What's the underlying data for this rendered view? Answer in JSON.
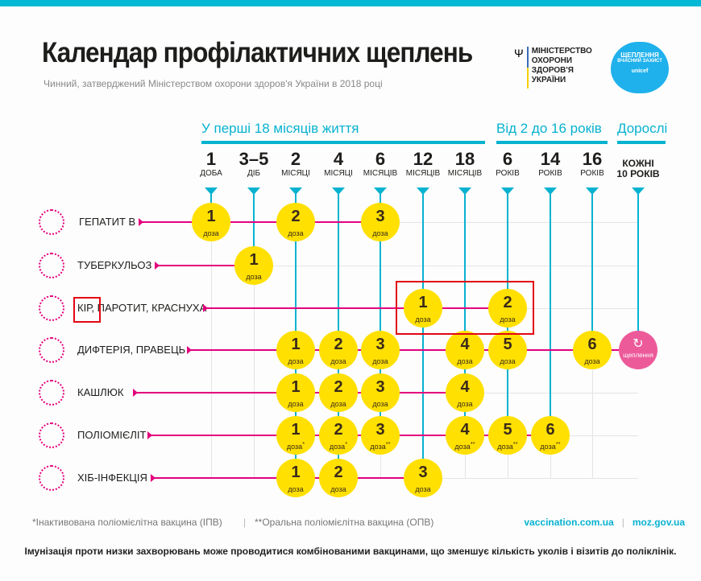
{
  "header": {
    "title": "Календар профілактичних щеплень",
    "subtitle": "Чинний, затверджений Міністерством охорони здоров'я України в 2018 році",
    "ministry": "МІНІСТЕРСТВО ОХОРОНИ ЗДОРОВ'Я УКРАЇНИ",
    "campaign": "ЩЕПЛЕННЯ",
    "campaign_sub": "ВЧАСНИЙ ЗАХИСТ",
    "unicef": "unicef"
  },
  "sections": [
    "У перші 18 місяців життя",
    "Від 2 до 16 років",
    "Дорослі"
  ],
  "columns": [
    {
      "n": "1",
      "u": "ДОБА"
    },
    {
      "n": "3–5",
      "u": "ДІБ"
    },
    {
      "n": "2",
      "u": "МІСЯЦІ"
    },
    {
      "n": "4",
      "u": "МІСЯЦІ"
    },
    {
      "n": "6",
      "u": "МІСЯЦІВ"
    },
    {
      "n": "12",
      "u": "МІСЯЦІВ"
    },
    {
      "n": "18",
      "u": "МІСЯЦІВ"
    },
    {
      "n": "6",
      "u": "РОКІВ"
    },
    {
      "n": "14",
      "u": "РОКІВ"
    },
    {
      "n": "16",
      "u": "РОКІВ"
    },
    {
      "n": "КОЖНІ",
      "u": "10 РОКІВ"
    }
  ],
  "dose_word": "доза",
  "revaccination": "щеплення",
  "rows": [
    {
      "name": "ГЕПАТИТ В",
      "doses": [
        [
          0,
          "1",
          ""
        ],
        [
          2,
          "2",
          ""
        ],
        [
          4,
          "3",
          ""
        ]
      ]
    },
    {
      "name": "ТУБЕРКУЛЬОЗ",
      "doses": [
        [
          1,
          "1",
          ""
        ]
      ]
    },
    {
      "name": "КІР, ПАРОТИТ, КРАСНУХА",
      "doses": [
        [
          5,
          "1",
          ""
        ],
        [
          7,
          "2",
          ""
        ]
      ]
    },
    {
      "name": "ДИФТЕРІЯ, ПРАВЕЦЬ",
      "doses": [
        [
          2,
          "1",
          ""
        ],
        [
          3,
          "2",
          ""
        ],
        [
          4,
          "3",
          ""
        ],
        [
          6,
          "4",
          ""
        ],
        [
          7,
          "5",
          ""
        ],
        [
          9,
          "6",
          ""
        ]
      ],
      "revac": 10
    },
    {
      "name": "КАШЛЮК",
      "doses": [
        [
          2,
          "1",
          ""
        ],
        [
          3,
          "2",
          ""
        ],
        [
          4,
          "3",
          ""
        ],
        [
          6,
          "4",
          ""
        ]
      ]
    },
    {
      "name": "ПОЛІОМІЄЛІТ",
      "doses": [
        [
          2,
          "1",
          "*"
        ],
        [
          3,
          "2",
          "*"
        ],
        [
          4,
          "3",
          "**"
        ],
        [
          6,
          "4",
          "**"
        ],
        [
          7,
          "5",
          "**"
        ],
        [
          8,
          "6",
          "**"
        ]
      ]
    },
    {
      "name": "ХІБ-ІНФЕКЦІЯ",
      "doses": [
        [
          2,
          "1",
          ""
        ],
        [
          3,
          "2",
          ""
        ],
        [
          5,
          "3",
          ""
        ]
      ]
    }
  ],
  "footer": {
    "ipv": "*Інактивована поліомієлітна вакцина (ІПВ)",
    "opv": "**Оральна поліомієлітна вакцина (ОПВ)",
    "site1": "vaccination.com.ua",
    "site2": "moz.gov.ua",
    "note": "Імунізація проти низки захворювань може проводитися комбінованими вакцинами, що зменшує кількість уколів і візитів до поліклінік."
  }
}
